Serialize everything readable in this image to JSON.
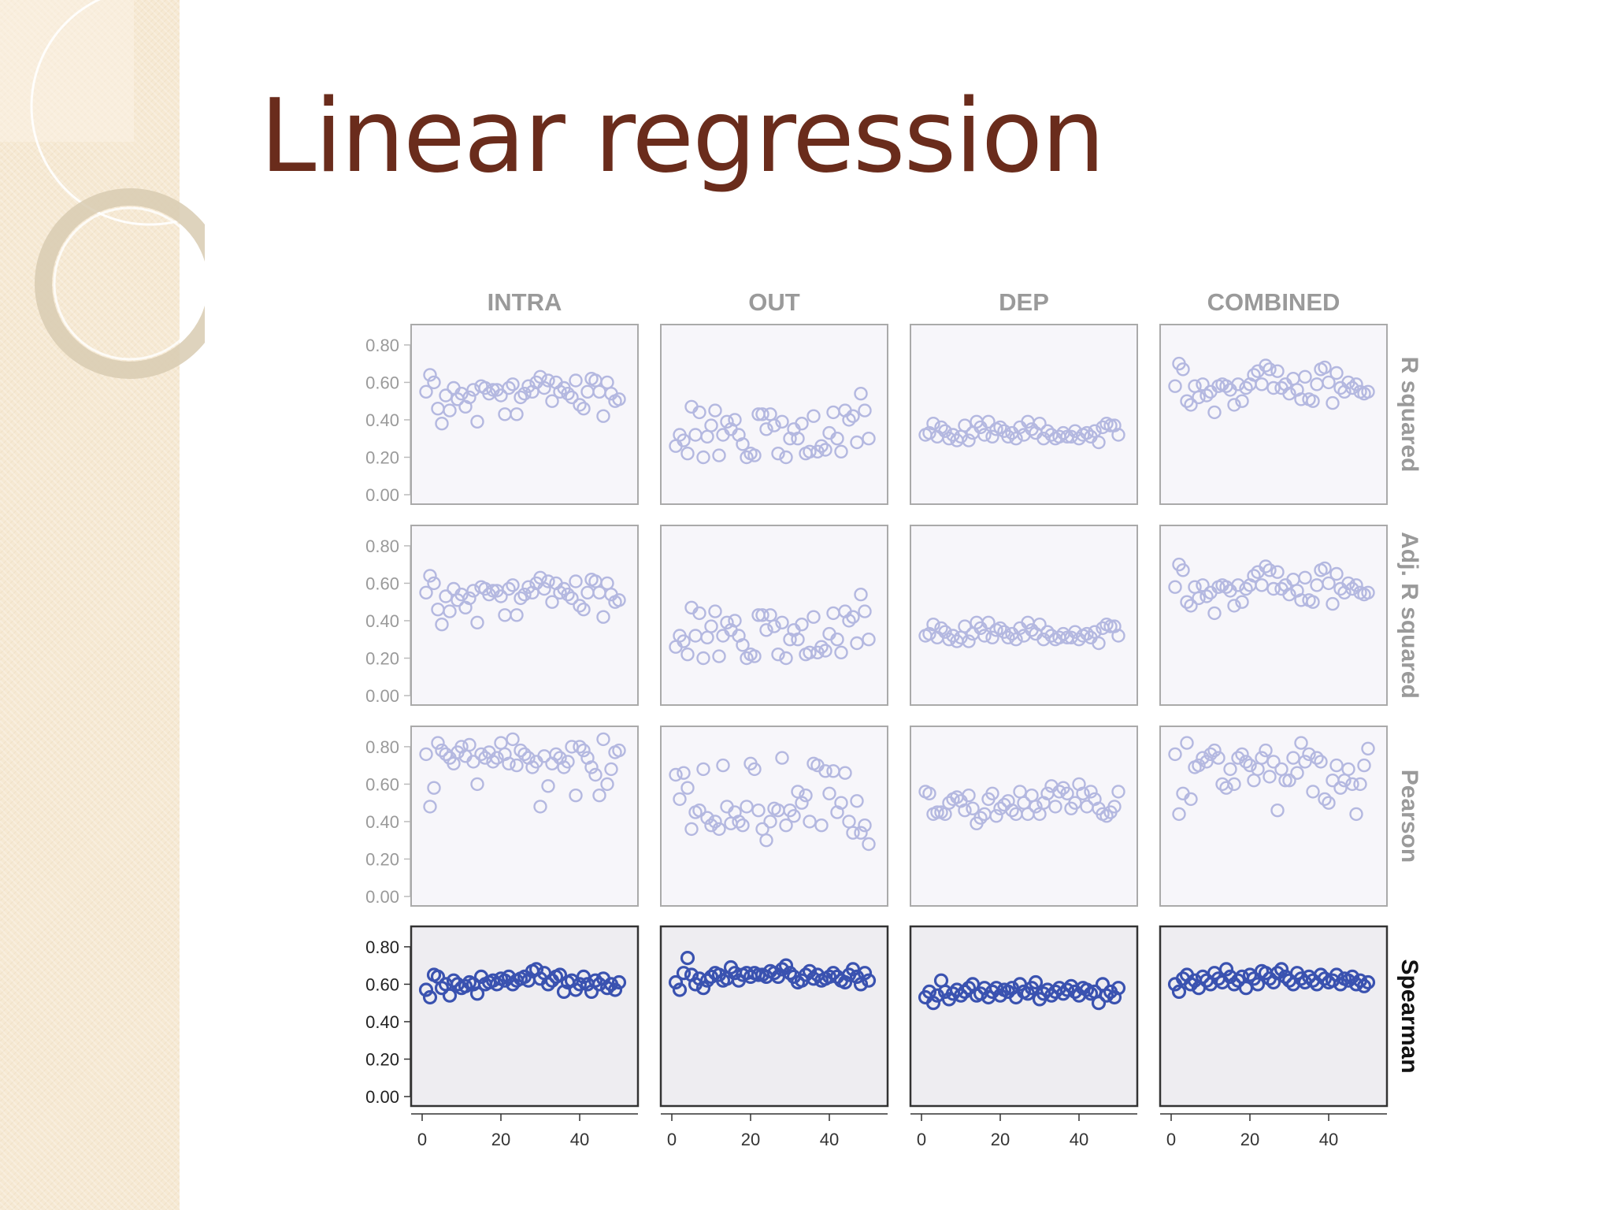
{
  "slide": {
    "title": "Linear regression",
    "colors": {
      "title": "#6a2c1c",
      "sidebar": "#f6e9d3",
      "faded_marker": "#b4b8e0",
      "active_marker": "#3a52b0",
      "faded_panel_bg": "#f7f6fa",
      "active_panel_bg": "#eeedf1"
    }
  },
  "chart_data": {
    "type": "scatter",
    "layout": "4x4 small multiples",
    "columns": [
      "INTRA",
      "OUT",
      "DEP",
      "COMBINED"
    ],
    "rows": [
      "R squared",
      "Adj. R squared",
      "Pearson",
      "Spearman"
    ],
    "highlighted_row": "Spearman",
    "xlim": [
      0,
      52
    ],
    "ylim": [
      0,
      0.85
    ],
    "x_ticks": [
      0,
      20,
      40
    ],
    "x_tick_labels": [
      "0",
      "20",
      "40"
    ],
    "y_ticks": [
      0,
      0.2,
      0.4,
      0.6,
      0.8
    ],
    "y_tick_labels": [
      "0.00",
      "0.20",
      "0.40",
      "0.60",
      "0.80"
    ],
    "x": [
      1,
      2,
      3,
      4,
      5,
      6,
      7,
      8,
      9,
      10,
      11,
      12,
      13,
      14,
      15,
      16,
      17,
      18,
      19,
      20,
      21,
      22,
      23,
      24,
      25,
      26,
      27,
      28,
      29,
      30,
      31,
      32,
      33,
      34,
      35,
      36,
      37,
      38,
      39,
      40,
      41,
      42,
      43,
      44,
      45,
      46,
      47,
      48,
      49,
      50
    ],
    "marker": "open circle",
    "grid": false,
    "legend": "none",
    "values": {
      "R squared": {
        "INTRA": [
          0.55,
          0.64,
          0.6,
          0.46,
          0.38,
          0.53,
          0.45,
          0.57,
          0.51,
          0.54,
          0.47,
          0.52,
          0.56,
          0.39,
          0.58,
          0.57,
          0.54,
          0.56,
          0.56,
          0.53,
          0.43,
          0.57,
          0.59,
          0.43,
          0.52,
          0.54,
          0.58,
          0.55,
          0.6,
          0.63,
          0.57,
          0.61,
          0.5,
          0.6,
          0.55,
          0.57,
          0.54,
          0.52,
          0.61,
          0.48,
          0.46,
          0.55,
          0.62,
          0.61,
          0.55,
          0.42,
          0.6,
          0.54,
          0.5,
          0.51
        ],
        "OUT": [
          0.26,
          0.32,
          0.29,
          0.22,
          0.47,
          0.32,
          0.44,
          0.2,
          0.31,
          0.37,
          0.45,
          0.21,
          0.32,
          0.39,
          0.35,
          0.4,
          0.32,
          0.27,
          0.2,
          0.22,
          0.21,
          0.43,
          0.43,
          0.35,
          0.43,
          0.37,
          0.22,
          0.39,
          0.2,
          0.3,
          0.35,
          0.3,
          0.38,
          0.22,
          0.23,
          0.42,
          0.23,
          0.26,
          0.24,
          0.33,
          0.44,
          0.3,
          0.23,
          0.45,
          0.4,
          0.42,
          0.28,
          0.54,
          0.45,
          0.3
        ],
        "DEP": [
          0.32,
          0.33,
          0.38,
          0.31,
          0.36,
          0.34,
          0.3,
          0.32,
          0.29,
          0.31,
          0.37,
          0.29,
          0.33,
          0.39,
          0.36,
          0.32,
          0.39,
          0.31,
          0.35,
          0.36,
          0.34,
          0.31,
          0.33,
          0.3,
          0.36,
          0.32,
          0.39,
          0.35,
          0.33,
          0.38,
          0.3,
          0.34,
          0.32,
          0.3,
          0.31,
          0.33,
          0.31,
          0.31,
          0.34,
          0.3,
          0.32,
          0.33,
          0.31,
          0.34,
          0.28,
          0.36,
          0.38,
          0.37,
          0.37,
          0.32
        ],
        "COMBINED": [
          0.58,
          0.7,
          0.67,
          0.5,
          0.48,
          0.58,
          0.52,
          0.59,
          0.53,
          0.55,
          0.44,
          0.58,
          0.59,
          0.58,
          0.56,
          0.48,
          0.59,
          0.5,
          0.57,
          0.59,
          0.64,
          0.66,
          0.59,
          0.69,
          0.67,
          0.57,
          0.66,
          0.57,
          0.59,
          0.54,
          0.62,
          0.56,
          0.51,
          0.63,
          0.51,
          0.5,
          0.59,
          0.67,
          0.68,
          0.6,
          0.49,
          0.65,
          0.57,
          0.55,
          0.6,
          0.57,
          0.59,
          0.55,
          0.54,
          0.55
        ]
      },
      "Adj. R squared": {
        "INTRA": [
          0.55,
          0.64,
          0.6,
          0.46,
          0.38,
          0.53,
          0.45,
          0.57,
          0.51,
          0.54,
          0.47,
          0.52,
          0.56,
          0.39,
          0.58,
          0.57,
          0.54,
          0.56,
          0.56,
          0.53,
          0.43,
          0.57,
          0.59,
          0.43,
          0.52,
          0.54,
          0.58,
          0.55,
          0.6,
          0.63,
          0.57,
          0.61,
          0.5,
          0.6,
          0.55,
          0.57,
          0.54,
          0.52,
          0.61,
          0.48,
          0.46,
          0.55,
          0.62,
          0.61,
          0.55,
          0.42,
          0.6,
          0.54,
          0.5,
          0.51
        ],
        "OUT": [
          0.26,
          0.32,
          0.29,
          0.22,
          0.47,
          0.32,
          0.44,
          0.2,
          0.31,
          0.37,
          0.45,
          0.21,
          0.32,
          0.39,
          0.35,
          0.4,
          0.32,
          0.27,
          0.2,
          0.22,
          0.21,
          0.43,
          0.43,
          0.35,
          0.43,
          0.37,
          0.22,
          0.39,
          0.2,
          0.3,
          0.35,
          0.3,
          0.38,
          0.22,
          0.23,
          0.42,
          0.23,
          0.26,
          0.24,
          0.33,
          0.44,
          0.3,
          0.23,
          0.45,
          0.4,
          0.42,
          0.28,
          0.54,
          0.45,
          0.3
        ],
        "DEP": [
          0.32,
          0.33,
          0.38,
          0.31,
          0.36,
          0.34,
          0.3,
          0.32,
          0.29,
          0.31,
          0.37,
          0.29,
          0.33,
          0.39,
          0.36,
          0.32,
          0.39,
          0.31,
          0.35,
          0.36,
          0.34,
          0.31,
          0.33,
          0.3,
          0.36,
          0.32,
          0.39,
          0.35,
          0.33,
          0.38,
          0.3,
          0.34,
          0.32,
          0.3,
          0.31,
          0.33,
          0.31,
          0.31,
          0.34,
          0.3,
          0.32,
          0.33,
          0.31,
          0.34,
          0.28,
          0.36,
          0.38,
          0.37,
          0.37,
          0.32
        ],
        "COMBINED": [
          0.58,
          0.7,
          0.67,
          0.5,
          0.48,
          0.58,
          0.52,
          0.59,
          0.53,
          0.55,
          0.44,
          0.58,
          0.59,
          0.58,
          0.56,
          0.48,
          0.59,
          0.5,
          0.57,
          0.59,
          0.64,
          0.66,
          0.59,
          0.69,
          0.67,
          0.57,
          0.66,
          0.57,
          0.59,
          0.54,
          0.62,
          0.56,
          0.51,
          0.63,
          0.51,
          0.5,
          0.59,
          0.67,
          0.68,
          0.6,
          0.49,
          0.65,
          0.57,
          0.55,
          0.6,
          0.57,
          0.59,
          0.55,
          0.54,
          0.55
        ]
      },
      "Pearson": {
        "INTRA": [
          0.76,
          0.48,
          0.58,
          0.82,
          0.78,
          0.76,
          0.74,
          0.71,
          0.77,
          0.8,
          0.75,
          0.81,
          0.72,
          0.6,
          0.76,
          0.74,
          0.77,
          0.72,
          0.74,
          0.82,
          0.76,
          0.71,
          0.84,
          0.7,
          0.78,
          0.76,
          0.74,
          0.69,
          0.72,
          0.48,
          0.75,
          0.59,
          0.71,
          0.76,
          0.74,
          0.69,
          0.72,
          0.8,
          0.54,
          0.8,
          0.78,
          0.74,
          0.69,
          0.65,
          0.54,
          0.84,
          0.6,
          0.68,
          0.77,
          0.78
        ],
        "OUT": [
          0.65,
          0.52,
          0.66,
          0.58,
          0.36,
          0.45,
          0.46,
          0.68,
          0.42,
          0.38,
          0.4,
          0.36,
          0.7,
          0.48,
          0.39,
          0.45,
          0.4,
          0.38,
          0.48,
          0.71,
          0.68,
          0.46,
          0.36,
          0.3,
          0.4,
          0.47,
          0.46,
          0.74,
          0.38,
          0.46,
          0.43,
          0.56,
          0.5,
          0.54,
          0.4,
          0.71,
          0.7,
          0.38,
          0.67,
          0.55,
          0.67,
          0.45,
          0.5,
          0.66,
          0.4,
          0.34,
          0.51,
          0.34,
          0.38,
          0.28
        ],
        "DEP": [
          0.56,
          0.55,
          0.44,
          0.45,
          0.45,
          0.44,
          0.5,
          0.52,
          0.53,
          0.51,
          0.46,
          0.54,
          0.47,
          0.39,
          0.42,
          0.44,
          0.52,
          0.55,
          0.43,
          0.47,
          0.49,
          0.51,
          0.46,
          0.44,
          0.56,
          0.5,
          0.44,
          0.54,
          0.48,
          0.44,
          0.5,
          0.55,
          0.59,
          0.48,
          0.56,
          0.58,
          0.55,
          0.47,
          0.5,
          0.6,
          0.55,
          0.48,
          0.56,
          0.52,
          0.47,
          0.44,
          0.43,
          0.45,
          0.48,
          0.56
        ],
        "COMBINED": [
          0.76,
          0.44,
          0.55,
          0.82,
          0.52,
          0.69,
          0.7,
          0.74,
          0.72,
          0.76,
          0.78,
          0.74,
          0.6,
          0.58,
          0.68,
          0.6,
          0.74,
          0.76,
          0.72,
          0.7,
          0.62,
          0.68,
          0.74,
          0.78,
          0.64,
          0.72,
          0.46,
          0.68,
          0.62,
          0.62,
          0.74,
          0.66,
          0.82,
          0.72,
          0.76,
          0.56,
          0.74,
          0.72,
          0.52,
          0.5,
          0.62,
          0.7,
          0.58,
          0.62,
          0.68,
          0.6,
          0.44,
          0.6,
          0.7,
          0.79
        ]
      },
      "Spearman": {
        "INTRA": [
          0.57,
          0.53,
          0.65,
          0.64,
          0.58,
          0.6,
          0.54,
          0.62,
          0.6,
          0.58,
          0.59,
          0.61,
          0.6,
          0.55,
          0.64,
          0.6,
          0.61,
          0.62,
          0.6,
          0.63,
          0.62,
          0.64,
          0.6,
          0.62,
          0.63,
          0.64,
          0.62,
          0.67,
          0.68,
          0.63,
          0.66,
          0.6,
          0.62,
          0.64,
          0.65,
          0.56,
          0.61,
          0.62,
          0.57,
          0.6,
          0.64,
          0.6,
          0.56,
          0.62,
          0.6,
          0.63,
          0.58,
          0.6,
          0.57,
          0.61
        ],
        "OUT": [
          0.61,
          0.57,
          0.66,
          0.74,
          0.65,
          0.6,
          0.63,
          0.58,
          0.62,
          0.64,
          0.66,
          0.65,
          0.62,
          0.63,
          0.69,
          0.66,
          0.62,
          0.65,
          0.66,
          0.64,
          0.66,
          0.65,
          0.65,
          0.64,
          0.67,
          0.66,
          0.64,
          0.68,
          0.7,
          0.66,
          0.64,
          0.61,
          0.62,
          0.65,
          0.67,
          0.63,
          0.65,
          0.62,
          0.63,
          0.64,
          0.66,
          0.64,
          0.62,
          0.61,
          0.65,
          0.68,
          0.64,
          0.6,
          0.66,
          0.62
        ],
        "DEP": [
          0.53,
          0.56,
          0.5,
          0.54,
          0.62,
          0.56,
          0.52,
          0.55,
          0.57,
          0.54,
          0.56,
          0.58,
          0.6,
          0.54,
          0.55,
          0.58,
          0.53,
          0.56,
          0.58,
          0.54,
          0.57,
          0.56,
          0.58,
          0.53,
          0.6,
          0.56,
          0.55,
          0.58,
          0.61,
          0.52,
          0.55,
          0.57,
          0.54,
          0.56,
          0.58,
          0.55,
          0.57,
          0.59,
          0.56,
          0.54,
          0.58,
          0.57,
          0.55,
          0.56,
          0.5,
          0.6,
          0.54,
          0.56,
          0.53,
          0.58
        ],
        "COMBINED": [
          0.6,
          0.56,
          0.63,
          0.65,
          0.6,
          0.62,
          0.58,
          0.64,
          0.62,
          0.6,
          0.66,
          0.63,
          0.61,
          0.68,
          0.64,
          0.6,
          0.62,
          0.64,
          0.58,
          0.65,
          0.63,
          0.6,
          0.67,
          0.66,
          0.63,
          0.61,
          0.66,
          0.68,
          0.64,
          0.62,
          0.6,
          0.66,
          0.63,
          0.61,
          0.64,
          0.62,
          0.6,
          0.65,
          0.63,
          0.61,
          0.62,
          0.65,
          0.6,
          0.63,
          0.62,
          0.64,
          0.6,
          0.62,
          0.59,
          0.61
        ]
      }
    }
  }
}
